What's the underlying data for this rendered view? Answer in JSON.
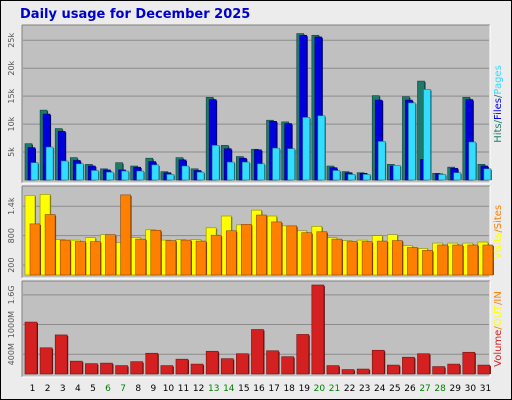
{
  "chart_data": {
    "type": "bar",
    "title": "Daily usage for December 2025",
    "x": [
      "1",
      "2",
      "3",
      "4",
      "5",
      "6",
      "7",
      "8",
      "9",
      "10",
      "11",
      "12",
      "13",
      "14",
      "15",
      "16",
      "17",
      "18",
      "19",
      "20",
      "21",
      "22",
      "23",
      "24",
      "25",
      "26",
      "27",
      "28",
      "29",
      "30",
      "31"
    ],
    "weekend_days": [
      "6",
      "7",
      "13",
      "14",
      "20",
      "21",
      "27",
      "28"
    ],
    "colors": {
      "hits": "#1f7a6b",
      "files": "#0000dd",
      "pages": "#33ddff",
      "visits": "#ffff00",
      "sites": "#ff8000",
      "volume_in": "#ff8000",
      "volume_out": "#ffff00",
      "volume": "#d42020",
      "weekday_label": "#000000",
      "weekend_label": "#008000",
      "panel_bg": "#c0c0c0"
    },
    "panels": [
      {
        "id": "hits",
        "ticks": [
          "5k",
          "10k",
          "15k",
          "20k",
          "25k"
        ],
        "tick_values": [
          5000,
          10000,
          15000,
          20000,
          25000
        ],
        "ymax": 27200,
        "legend": [
          {
            "text": "Hits",
            "color": "#1f7a6b"
          },
          {
            "text": "/",
            "color": "#1f7a6b"
          },
          {
            "text": "Files",
            "color": "#0000dd"
          },
          {
            "text": "/",
            "color": "#1f7a6b"
          },
          {
            "text": "Pages",
            "color": "#33ddff"
          }
        ],
        "series": [
          {
            "name": "Hits",
            "color": "#1f7a6b",
            "values": [
              6500,
              12500,
              9200,
              4000,
              2800,
              2000,
              3100,
              2500,
              3900,
              1500,
              4000,
              2000,
              14800,
              6200,
              4200,
              5500,
              10700,
              10400,
              26200,
              25900,
              2500,
              1500,
              1300,
              15100,
              2800,
              14900,
              17700,
              1200,
              2300,
              14800,
              2800
            ]
          },
          {
            "name": "Files",
            "color": "#0000dd",
            "values": [
              5800,
              11800,
              8700,
              3500,
              2500,
              1800,
              1800,
              2300,
              3300,
              1300,
              3600,
              1700,
              14400,
              5600,
              3900,
              5400,
              10500,
              10100,
              25900,
              25600,
              2200,
              1300,
              1200,
              14300,
              2500,
              14300,
              3700,
              1100,
              2100,
              14400,
              2500
            ]
          },
          {
            "name": "Pages",
            "color": "#33ddff",
            "values": [
              3100,
              5900,
              3400,
              2900,
              1700,
              1400,
              1600,
              1600,
              2700,
              1000,
              2500,
              1400,
              6200,
              3200,
              3200,
              2900,
              5700,
              5600,
              11200,
              11500,
              1700,
              1000,
              1000,
              6900,
              2600,
              13800,
              16200,
              1000,
              1300,
              6800,
              2000
            ]
          }
        ]
      },
      {
        "id": "visits",
        "ticks": [
          "200",
          "800",
          "1.4k"
        ],
        "tick_values": [
          200,
          800,
          1400
        ],
        "ymax": 1750,
        "legend": [
          {
            "text": "Visits",
            "color": "#ffff00"
          },
          {
            "text": "/",
            "color": "#ff8000"
          },
          {
            "text": "Sites",
            "color": "#ff8000"
          }
        ],
        "series": [
          {
            "name": "Visits",
            "color": "#ffff00",
            "values": [
              1620,
              1640,
              720,
              710,
              760,
              820,
              660,
              760,
              920,
              710,
              720,
              720,
              960,
              1200,
              1020,
              1320,
              1200,
              1000,
              900,
              990,
              760,
              700,
              710,
              800,
              820,
              600,
              540,
              650,
              650,
              650,
              670
            ]
          },
          {
            "name": "Sites",
            "color": "#ff8000",
            "values": [
              1040,
              1230,
              710,
              680,
              680,
              820,
              1630,
              730,
              910,
              700,
              710,
              690,
              810,
              900,
              1030,
              1220,
              1080,
              1000,
              860,
              880,
              730,
              680,
              680,
              690,
              700,
              560,
              500,
              610,
              610,
              610,
              610
            ]
          }
        ]
      },
      {
        "id": "volume",
        "ticks": [
          "400M",
          "1000M",
          "1.6G"
        ],
        "tick_values": [
          400,
          1000,
          1600
        ],
        "ymax": 1820,
        "legend": [
          {
            "text": "Volume",
            "color": "#d42020"
          },
          {
            "text": "/",
            "color": "#ff8000"
          },
          {
            "text": "OUT",
            "color": "#ffff00"
          },
          {
            "text": "/",
            "color": "#ff8000"
          },
          {
            "text": "IN",
            "color": "#ff8000"
          }
        ],
        "series": [
          {
            "name": "Volume",
            "color": "#d42020",
            "values": [
              1050,
              530,
              790,
              260,
              210,
              220,
              170,
              250,
              420,
              170,
              300,
              200,
              460,
              310,
              410,
              900,
              470,
              350,
              800,
              1800,
              170,
              90,
              100,
              480,
              180,
              340,
              410,
              150,
              200,
              440,
              180
            ]
          }
        ]
      }
    ]
  }
}
